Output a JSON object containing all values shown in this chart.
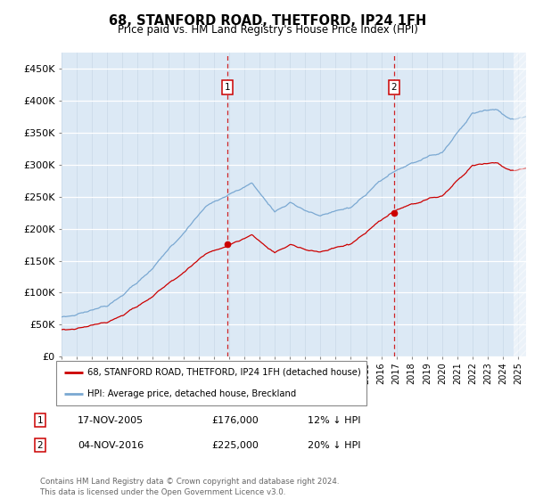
{
  "title": "68, STANFORD ROAD, THETFORD, IP24 1FH",
  "subtitle": "Price paid vs. HM Land Registry's House Price Index (HPI)",
  "hpi_color": "#7aa8d2",
  "price_color": "#cc0000",
  "dashed_line_color": "#cc0000",
  "bg_color": "#dce9f5",
  "ylim": [
    0,
    475000
  ],
  "yticks": [
    0,
    50000,
    100000,
    150000,
    200000,
    250000,
    300000,
    350000,
    400000,
    450000
  ],
  "ytick_labels": [
    "£0",
    "£50K",
    "£100K",
    "£150K",
    "£200K",
    "£250K",
    "£300K",
    "£350K",
    "£400K",
    "£450K"
  ],
  "sale1_t": 2005.88,
  "sale1_price": 176000,
  "sale2_t": 2016.84,
  "sale2_price": 225000,
  "legend_label1": "68, STANFORD ROAD, THETFORD, IP24 1FH (detached house)",
  "legend_label2": "HPI: Average price, detached house, Breckland",
  "note1_date": "17-NOV-2005",
  "note1_price": "£176,000",
  "note1_pct": "12% ↓ HPI",
  "note2_date": "04-NOV-2016",
  "note2_price": "£225,000",
  "note2_pct": "20% ↓ HPI",
  "footer": "Contains HM Land Registry data © Crown copyright and database right 2024.\nThis data is licensed under the Open Government Licence v3.0.",
  "xstart": 1995.0,
  "xend": 2025.5
}
